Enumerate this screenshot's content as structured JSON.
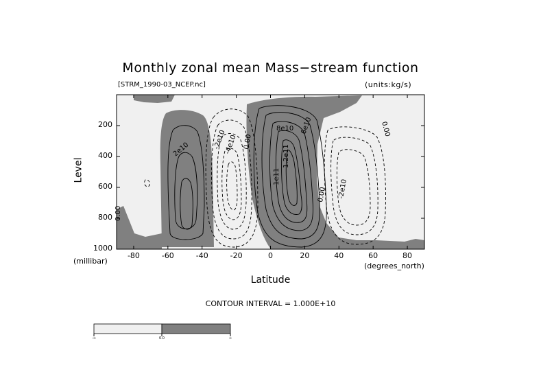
{
  "chart_data": {
    "type": "contour",
    "title": "Monthly zonal mean Mass−stream function",
    "subtitle_left": "[STRM_1990-03_NCEP.nc]",
    "subtitle_right": "(units:kg/s)",
    "xlabel": "Latitude",
    "xunit": "(degrees_north)",
    "ylabel": "Level",
    "yunit": "(millibar)",
    "xlim": [
      -90,
      90
    ],
    "ylim": [
      1000,
      0
    ],
    "xticks": [
      -80,
      -60,
      -40,
      -20,
      0,
      20,
      40,
      60,
      80
    ],
    "xtick_labels": [
      "-80",
      "-60",
      "-40",
      "-20",
      "0",
      "20",
      "40",
      "60",
      "80"
    ],
    "yticks": [
      200,
      400,
      600,
      800,
      1000
    ],
    "ytick_labels": [
      "200",
      "400",
      "600",
      "800",
      "1000"
    ],
    "contour_interval_text": "CONTOUR INTERVAL = 1.000E+10",
    "contour_interval": 10000000000,
    "contour_labels": [
      "0.00",
      "2e10",
      "-2e10",
      "-4e10",
      "8e10",
      "6e10",
      "1e11",
      "1.2e11",
      "-2e10",
      "0.00",
      "0.00",
      "0.00"
    ],
    "cells": [
      {
        "sign": "positive",
        "center_lat": -52,
        "center_level": 600,
        "max": 30000000000
      },
      {
        "sign": "negative",
        "center_lat": -22,
        "center_level": 550,
        "min": -50000000000
      },
      {
        "sign": "positive",
        "center_lat": 12,
        "center_level": 450,
        "max": 130000000000
      },
      {
        "sign": "negative",
        "center_lat": 48,
        "center_level": 550,
        "min": -30000000000
      }
    ],
    "colorbar": {
      "labels": [
        "-∞",
        "0.0",
        "∞"
      ],
      "colors": [
        "#f0f0f0",
        "#808080"
      ]
    }
  }
}
